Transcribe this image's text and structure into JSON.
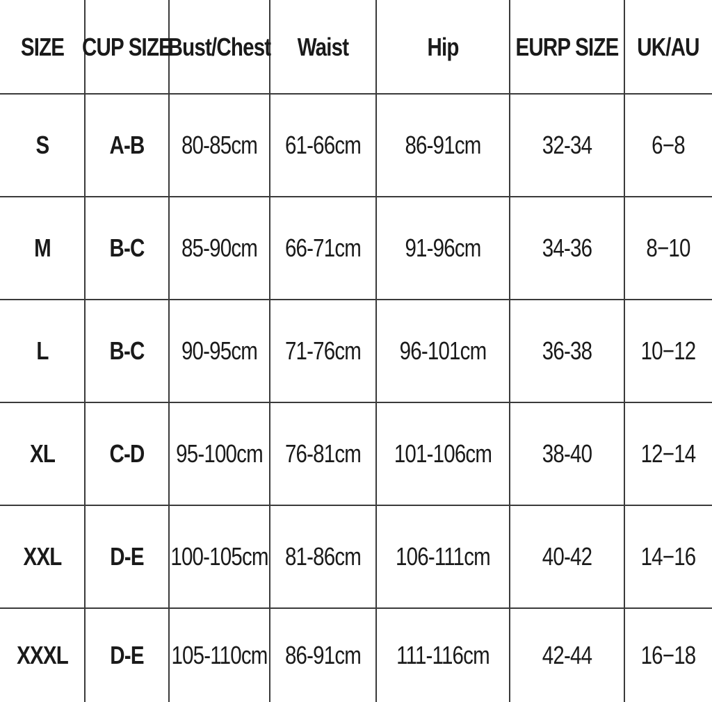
{
  "table": {
    "headers": [
      "SIZE",
      "CUP SIZE",
      "Bust/Chest",
      "Waist",
      "Hip",
      "EURP SIZE",
      "UK/AU"
    ],
    "rows": [
      [
        "S",
        "A-B",
        "80-85cm",
        "61-66cm",
        "86-91cm",
        "32-34",
        "6−8"
      ],
      [
        "M",
        "B-C",
        "85-90cm",
        "66-71cm",
        "91-96cm",
        "34-36",
        "8−10"
      ],
      [
        "L",
        "B-C",
        "90-95cm",
        "71-76cm",
        "96-101cm",
        "36-38",
        "10−12"
      ],
      [
        "XL",
        "C-D",
        "95-100cm",
        "76-81cm",
        "101-106cm",
        "38-40",
        "12−14"
      ],
      [
        "XXL",
        "D-E",
        "100-105cm",
        "81-86cm",
        "106-111cm",
        "40-42",
        "14−16"
      ],
      [
        "XXXL",
        "D-E",
        "105-110cm",
        "86-91cm",
        "111-116cm",
        "42-44",
        "16−18"
      ]
    ]
  }
}
